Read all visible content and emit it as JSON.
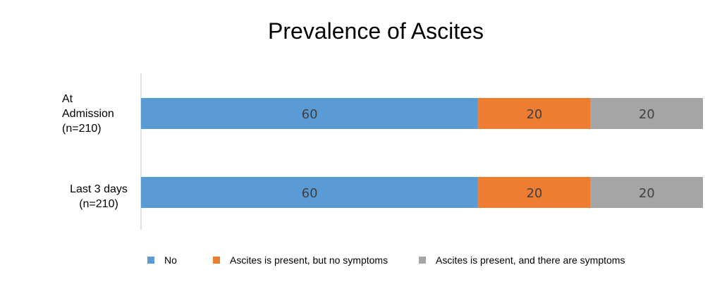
{
  "chart_data": {
    "type": "bar",
    "orientation": "horizontal",
    "stacked": true,
    "title": "Prevalence of Ascites",
    "categories": [
      [
        "At",
        "Admission",
        "(n=210)"
      ],
      [
        "Last 3 days",
        "(n=210)"
      ]
    ],
    "series": [
      {
        "name": "No",
        "values": [
          60,
          60
        ],
        "color": "#5b9bd5"
      },
      {
        "name": "Ascites is present, but no symptoms",
        "values": [
          20,
          20
        ],
        "color": "#ed7d31"
      },
      {
        "name": "Ascites is present, and there are symptoms",
        "values": [
          20,
          20
        ],
        "color": "#a5a5a5"
      }
    ],
    "xlim": [
      0,
      100
    ],
    "grid": false,
    "legend_position": "bottom",
    "data_labels": true
  }
}
